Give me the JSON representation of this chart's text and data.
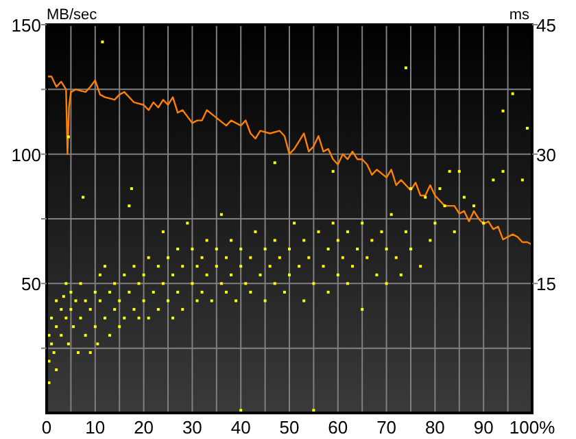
{
  "chart_data": {
    "type": "line",
    "ylabel": "MB/sec",
    "y2label": "ms",
    "xlim": [
      0,
      100
    ],
    "xticks": [
      0,
      {
        "value": 5,
        "label": null
      },
      10,
      {
        "value": 15,
        "label": null
      },
      20,
      {
        "value": 25,
        "label": null
      },
      30,
      {
        "value": 35,
        "label": null
      },
      40,
      {
        "value": 45,
        "label": null
      },
      50,
      {
        "value": 55,
        "label": null
      },
      60,
      {
        "value": 65,
        "label": null
      },
      70,
      {
        "value": 75,
        "label": null
      },
      80,
      {
        "value": 85,
        "label": null
      },
      90,
      {
        "value": 95,
        "label": null
      },
      {
        "value": 100,
        "label": "100%"
      }
    ],
    "ylim": [
      0,
      150
    ],
    "yticks": [
      {
        "value": 25,
        "label": null
      },
      50,
      {
        "value": 75,
        "label": null
      },
      100,
      {
        "value": 125,
        "label": null
      },
      150
    ],
    "y2lim": [
      0,
      45
    ],
    "y2ticks": [
      15,
      30,
      45
    ],
    "grid": true,
    "series": [
      {
        "color": "#ff8000",
        "marker": "none",
        "line_style": "solid",
        "x": [
          0,
          1,
          2,
          3,
          4,
          4.3,
          4.6,
          5,
          6,
          8,
          9,
          10,
          11,
          12,
          14,
          15,
          16,
          18,
          20,
          21,
          22,
          23,
          24,
          25,
          26,
          27,
          28,
          30,
          31,
          32,
          33,
          35,
          37,
          38,
          40,
          41,
          42,
          43,
          44,
          46,
          48,
          49,
          50,
          51,
          52,
          53,
          54,
          55,
          56,
          57,
          58,
          59,
          60,
          61,
          62,
          63,
          64,
          65,
          66,
          67,
          68,
          70,
          71,
          72,
          73,
          75,
          76,
          77,
          78,
          79,
          80,
          81,
          82,
          84,
          85,
          86,
          87,
          88,
          89,
          90,
          91,
          92,
          93,
          94,
          95,
          96,
          97,
          98,
          99,
          100
        ],
        "values": [
          130,
          130,
          126,
          128,
          125,
          100,
          118,
          124,
          125,
          124,
          126,
          128.5,
          123,
          122,
          121,
          123,
          124,
          120,
          119,
          117,
          120,
          118,
          121,
          119,
          122,
          116,
          117,
          112,
          113,
          113,
          117,
          114,
          111,
          113,
          111,
          113,
          108,
          106,
          109,
          108,
          109,
          107,
          100,
          102,
          105,
          108,
          101,
          103,
          107,
          101,
          102,
          98,
          96,
          100,
          98,
          101,
          98,
          98,
          96,
          92,
          94,
          91,
          94,
          88,
          90,
          86,
          89,
          84,
          84,
          88,
          84,
          82,
          80,
          80,
          77,
          78,
          74,
          78,
          75,
          73,
          74,
          71,
          72,
          67,
          68,
          69,
          68,
          66,
          66,
          65
        ]
      },
      {
        "type": "scatter",
        "axis": "y2",
        "color": "#ffff00",
        "marker": "square",
        "x": [
          0.5,
          0.5,
          0.5,
          1,
          1,
          1.5,
          2,
          2,
          2,
          3,
          3,
          3.5,
          4,
          4,
          4.5,
          5,
          5,
          5.5,
          6,
          6.5,
          7,
          7,
          7.5,
          8,
          8,
          9,
          9,
          10,
          10,
          10.5,
          11,
          11,
          11.5,
          12,
          12,
          13,
          13,
          14,
          14,
          15,
          15,
          16,
          16,
          17,
          17,
          18,
          18,
          19,
          19,
          20,
          20,
          21,
          21,
          22,
          23,
          23,
          24,
          24,
          25,
          25,
          26,
          26,
          27,
          27,
          28,
          28,
          29,
          30,
          30,
          31,
          31,
          32,
          32,
          33,
          33,
          34,
          35,
          35,
          36,
          36,
          37,
          37,
          38,
          38,
          39,
          40,
          40,
          40,
          41,
          42,
          42,
          43,
          44,
          45,
          45,
          46,
          47,
          47,
          48,
          49,
          50,
          50,
          51,
          52,
          53,
          53,
          54,
          55,
          55,
          56,
          57,
          58,
          58,
          59,
          60,
          60,
          61,
          62,
          62,
          63,
          64,
          65,
          65,
          66,
          67,
          68,
          69,
          70,
          70,
          71,
          72,
          73,
          74,
          75,
          75,
          77,
          78,
          79,
          80,
          81,
          82,
          83,
          84,
          85,
          86,
          88,
          90,
          92,
          94,
          96,
          98,
          99,
          17.5,
          4.5,
          47,
          59,
          74,
          94
        ],
        "values": [
          6,
          3.5,
          9,
          11,
          8,
          7,
          10,
          13,
          5,
          12,
          9,
          13.5,
          11,
          15,
          8,
          12,
          14,
          10,
          13,
          7,
          11,
          15,
          25,
          9,
          13,
          12,
          7,
          14,
          10,
          8,
          13,
          16,
          43,
          11,
          17,
          14,
          9,
          12,
          15,
          13,
          10,
          16,
          11,
          14,
          24,
          12,
          17,
          15,
          11,
          13,
          16,
          18,
          11,
          14,
          17,
          12,
          15,
          21,
          13,
          18,
          16,
          11,
          14,
          19,
          17,
          12,
          22,
          15,
          19,
          13,
          17,
          18,
          14,
          16,
          20,
          13,
          17,
          19,
          15,
          23,
          18,
          14,
          16,
          20,
          13,
          17,
          19,
          0.3,
          15,
          18,
          14,
          21,
          16,
          19,
          13,
          17,
          20,
          15,
          18,
          14,
          19,
          16,
          22,
          17,
          13,
          20,
          18,
          15,
          0.3,
          21,
          17,
          19,
          14,
          22,
          16,
          20,
          18,
          15,
          21,
          17,
          19,
          22,
          12,
          18,
          20,
          16,
          21,
          15,
          19,
          23,
          18,
          16,
          21,
          19,
          26,
          17,
          25,
          20,
          22,
          26,
          24,
          28,
          21,
          28,
          25,
          24,
          22,
          27,
          28,
          37,
          27,
          33,
          26,
          32,
          29,
          28,
          40,
          35
        ]
      }
    ]
  }
}
